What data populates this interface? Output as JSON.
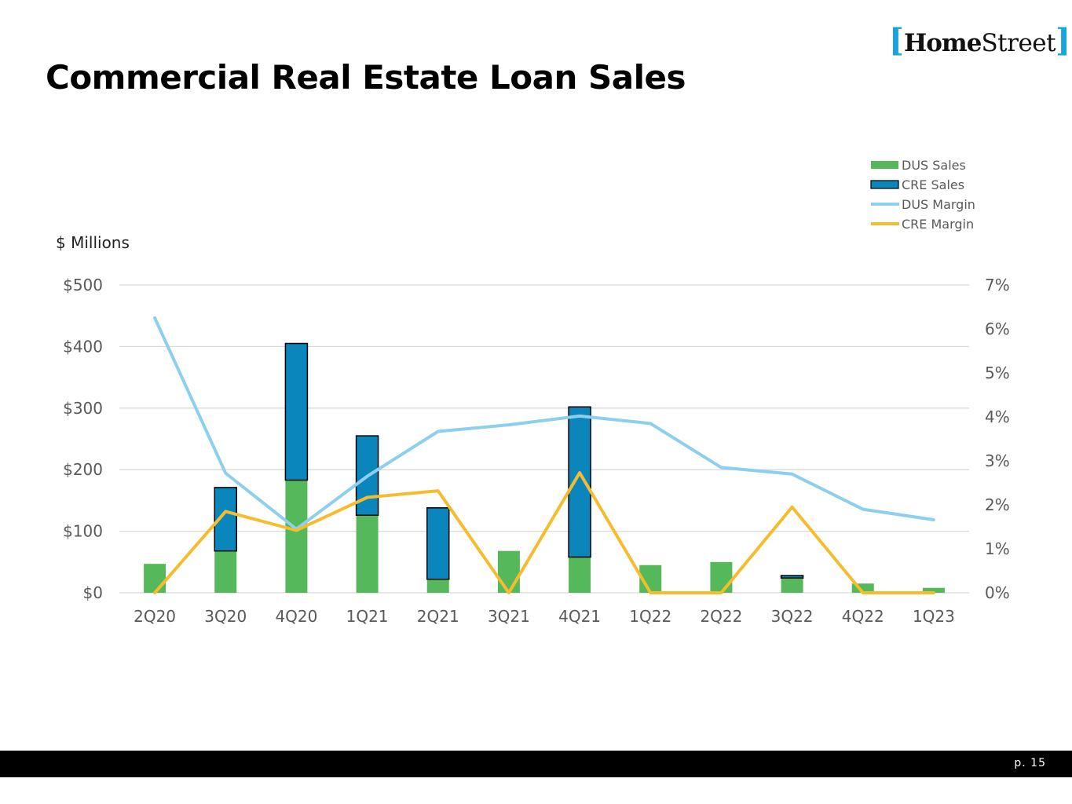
{
  "logo": {
    "left_bracket": "[",
    "bold": "Home",
    "light": "Street",
    "right_bracket": "]"
  },
  "title": "Commercial Real Estate Loan Sales",
  "units_label": "$ Millions",
  "page_number": "p. 15",
  "colors": {
    "dus_sales": "#55b85a",
    "cre_sales": "#0b86bd",
    "dus_margin": "#8ecfee",
    "cre_margin": "#f5bd2e",
    "grid": "#d9d9d9",
    "tick_text": "#595959"
  },
  "chart_data": {
    "type": "bar",
    "stacked": true,
    "categories": [
      "2Q20",
      "3Q20",
      "4Q20",
      "1Q21",
      "2Q21",
      "3Q21",
      "4Q21",
      "1Q22",
      "2Q22",
      "3Q22",
      "4Q22",
      "1Q23"
    ],
    "series": [
      {
        "name": "DUS Sales",
        "type": "bar",
        "axis": "left",
        "values": [
          47,
          68,
          183,
          126,
          22,
          68,
          58,
          45,
          50,
          24,
          15,
          8
        ]
      },
      {
        "name": "CRE Sales",
        "type": "bar",
        "axis": "left",
        "values": [
          0,
          103,
          222,
          129,
          116,
          0,
          244,
          0,
          0,
          4,
          0,
          0
        ]
      },
      {
        "name": "DUS Margin",
        "type": "line",
        "axis": "right",
        "values": [
          6.25,
          2.72,
          1.45,
          2.65,
          3.67,
          3.82,
          4.02,
          3.85,
          2.85,
          2.7,
          1.9,
          1.66
        ]
      },
      {
        "name": "CRE Margin",
        "type": "line",
        "axis": "right",
        "values": [
          0.0,
          1.85,
          1.42,
          2.17,
          2.32,
          0.0,
          2.73,
          0.0,
          0.0,
          1.95,
          0.0,
          0.0
        ]
      }
    ],
    "y_left": {
      "min": 0,
      "max": 500,
      "step": 100,
      "tick_labels": [
        "$0",
        "$100",
        "$200",
        "$300",
        "$400",
        "$500"
      ]
    },
    "y_right": {
      "min": 0,
      "max": 7,
      "step": 1,
      "tick_labels": [
        "0%",
        "1%",
        "2%",
        "3%",
        "4%",
        "5%",
        "6%",
        "7%"
      ]
    },
    "grid": true,
    "legend_position": "top-right"
  }
}
